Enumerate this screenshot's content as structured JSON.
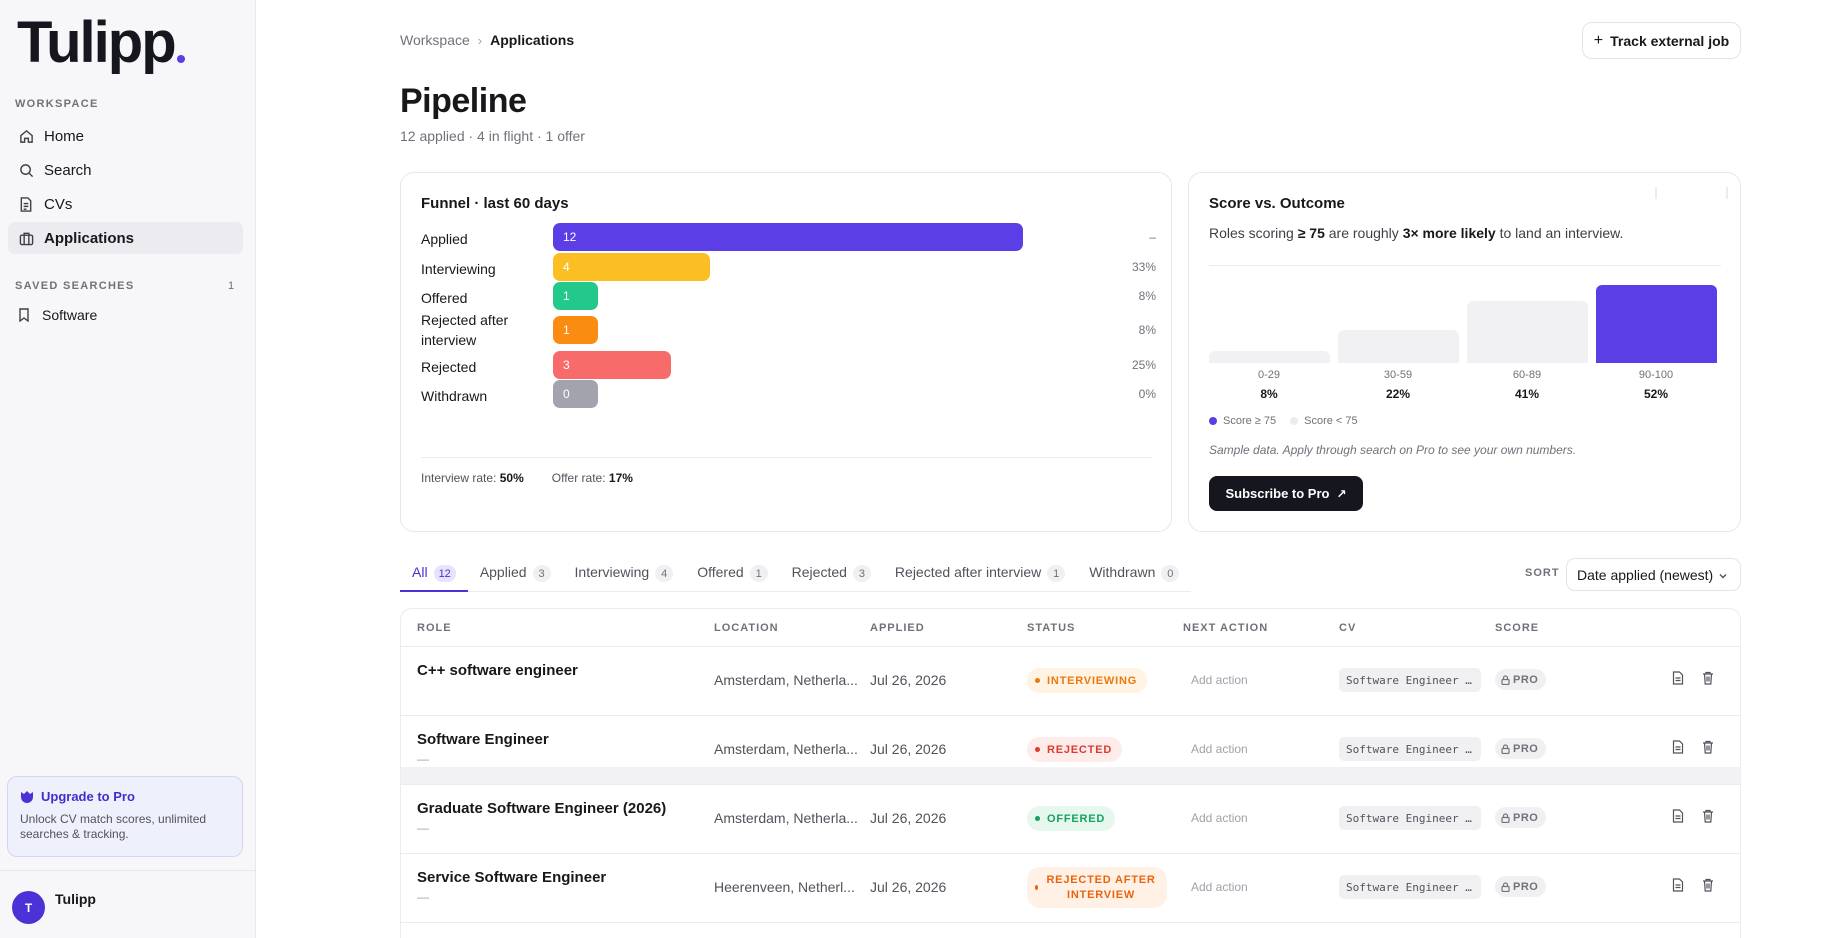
{
  "brand": {
    "logo_text": "Tulipp"
  },
  "sidebar": {
    "workspace_title": "WORKSPACE",
    "nav": [
      {
        "label": "Home",
        "icon": "home-icon"
      },
      {
        "label": "Search",
        "icon": "search-icon"
      },
      {
        "label": "CVs",
        "icon": "document-icon"
      },
      {
        "label": "Applications",
        "icon": "briefcase-icon",
        "active": true
      }
    ],
    "saved_title": "SAVED SEARCHES",
    "saved_count": "1",
    "saved_items": [
      {
        "label": "Software",
        "icon": "bookmark-icon"
      }
    ],
    "upgrade": {
      "title": "Upgrade to Pro",
      "body": "Unlock CV match scores, unlimited searches & tracking."
    },
    "user": {
      "initial": "T",
      "name": "Tulipp"
    }
  },
  "header": {
    "breadcrumb": [
      "Workspace",
      "Applications"
    ],
    "track_button": "Track external job",
    "title": "Pipeline",
    "subtitle": "12 applied · 4 in flight · 1 offer"
  },
  "funnel": {
    "title": "Funnel · last 60 days",
    "rows": [
      {
        "label": "Applied",
        "value": "12",
        "pct": "–",
        "fraction": 1.0,
        "color": "#5b3ee6"
      },
      {
        "label": "Interviewing",
        "value": "4",
        "pct": "33%",
        "fraction": 0.333,
        "color": "#fbbf24"
      },
      {
        "label": "Offered",
        "value": "1",
        "pct": "8%",
        "fraction": 0.083,
        "color": "#22c98b"
      },
      {
        "label": "Rejected after interview",
        "value": "1",
        "pct": "8%",
        "fraction": 0.083,
        "color": "#fb8c12"
      },
      {
        "label": "Rejected",
        "value": "3",
        "pct": "25%",
        "fraction": 0.25,
        "color": "#f86b6b"
      },
      {
        "label": "Withdrawn",
        "value": "0",
        "pct": "0%",
        "fraction": 0.0,
        "color": "#a3a3ad"
      }
    ],
    "interview_rate_label": "Interview rate:",
    "interview_rate": "50%",
    "offer_rate_label": "Offer rate:",
    "offer_rate": "17%"
  },
  "score": {
    "title": "Score vs. Outcome",
    "desc_pre": "Roles scoring ",
    "desc_b1": "≥ 75",
    "desc_mid": " are roughly ",
    "desc_b2": "3× more likely",
    "desc_post": " to land an interview.",
    "legend": [
      "Score ≥ 75",
      "Score < 75"
    ],
    "note": "Sample data. Apply through search on Pro to see your own numbers.",
    "cta": "Subscribe to Pro",
    "colors": {
      "high": "#5b3ee6",
      "low": "#f1f1f4"
    }
  },
  "chart_data": {
    "type": "bar",
    "title": "Score vs. Outcome",
    "categories": [
      "0-29",
      "30-59",
      "60-89",
      "90-100"
    ],
    "values": [
      8,
      22,
      41,
      52
    ],
    "value_labels": [
      "8%",
      "22%",
      "41%",
      "52%"
    ],
    "highlight": [
      false,
      false,
      false,
      true
    ]
  },
  "tabs": [
    {
      "label": "All",
      "count": "12",
      "active": true
    },
    {
      "label": "Applied",
      "count": "3"
    },
    {
      "label": "Interviewing",
      "count": "4"
    },
    {
      "label": "Offered",
      "count": "1"
    },
    {
      "label": "Rejected",
      "count": "3"
    },
    {
      "label": "Rejected after interview",
      "count": "1"
    },
    {
      "label": "Withdrawn",
      "count": "0"
    }
  ],
  "sort": {
    "label": "SORT",
    "value": "Date applied (newest)"
  },
  "table": {
    "columns": [
      "ROLE",
      "LOCATION",
      "APPLIED",
      "STATUS",
      "NEXT ACTION",
      "CV",
      "SCORE"
    ],
    "rows": [
      {
        "role": "C++ software engineer",
        "location": "Amsterdam, Netherla...",
        "applied": "Jul 26, 2026",
        "status": "INTERVIEWING",
        "status_color": "#ea7a0c",
        "status_bg": "#fff3e3",
        "next_action": "Add action",
        "cv": "Software Engineer …",
        "score": "PRO"
      },
      {
        "role": "Software Engineer",
        "role_sub": "—",
        "location": "Amsterdam, Netherla...",
        "applied": "Jul 26, 2026",
        "status": "REJECTED",
        "status_color": "#dc3b2f",
        "status_bg": "#fdecea",
        "next_action": "Add action",
        "cv": "Software Engineer …",
        "score": "PRO"
      },
      {
        "role": "Graduate Software Engineer (2026)",
        "role_sub": "—",
        "location": "Amsterdam, Netherla...",
        "applied": "Jul 26, 2026",
        "status": "OFFERED",
        "status_color": "#16a15f",
        "status_bg": "#e6f7ee",
        "next_action": "Add action",
        "cv": "Software Engineer …",
        "score": "PRO"
      },
      {
        "role": "Service Software Engineer",
        "role_sub": "—",
        "location": "Heerenveen, Netherl...",
        "applied": "Jul 26, 2026",
        "status": "REJECTED AFTER INTERVIEW",
        "status_color": "#e8650d",
        "status_bg": "#fff1e6",
        "next_action": "Add action",
        "cv": "Software Engineer …",
        "score": "PRO"
      }
    ]
  }
}
